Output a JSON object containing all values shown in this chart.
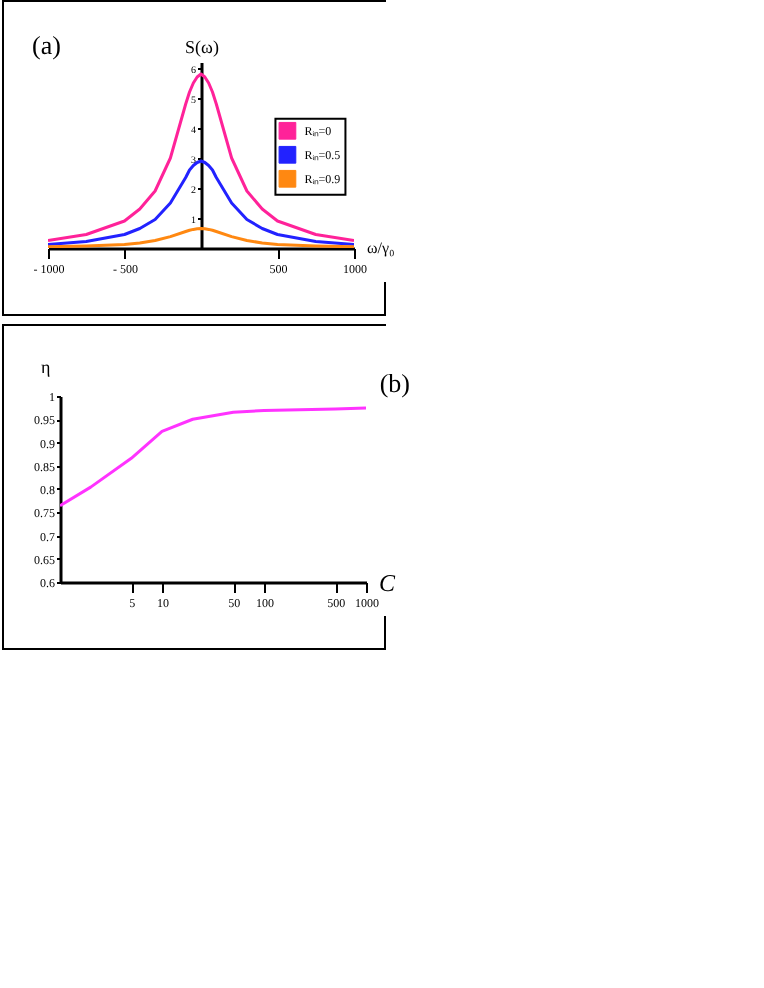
{
  "chart_data": [
    {
      "type": "line",
      "xlabel": "ω/γ₀",
      "ylabel": "S(ω)",
      "annotations": [
        "(a)"
      ],
      "legend": "right",
      "grid": false,
      "x": [
        -1000,
        -750,
        -500,
        -400,
        -300,
        -200,
        -100,
        -75,
        -50,
        -25,
        0,
        25,
        50,
        75,
        100,
        200,
        300,
        400,
        500,
        750,
        1000
      ],
      "xlim": [
        -1000,
        1000
      ],
      "xticks": [
        {
          "value": -1000,
          "label": "- 1000"
        },
        {
          "value": -500,
          "label": "- 500"
        },
        500,
        1000
      ],
      "ylim": [
        0,
        6.2
      ],
      "yticks": [
        1,
        2,
        3,
        4,
        5,
        6
      ],
      "series": [
        {
          "name": "Rᵢₙ=0",
          "color": "#ff2299",
          "values": [
            0.25,
            0.45,
            0.9,
            1.3,
            1.9,
            3.0,
            4.8,
            5.2,
            5.5,
            5.7,
            5.8,
            5.7,
            5.5,
            5.2,
            4.8,
            3.0,
            1.9,
            1.3,
            0.9,
            0.45,
            0.25
          ]
        },
        {
          "name": "Rᵢₙ=0.5",
          "color": "#2222ff",
          "values": [
            0.12,
            0.22,
            0.45,
            0.65,
            0.95,
            1.5,
            2.35,
            2.6,
            2.75,
            2.85,
            2.9,
            2.85,
            2.75,
            2.6,
            2.35,
            1.5,
            0.95,
            0.65,
            0.45,
            0.22,
            0.12
          ]
        },
        {
          "name": "Rᵢₙ=0.9",
          "color": "#ff8811",
          "values": [
            0.04,
            0.07,
            0.12,
            0.17,
            0.25,
            0.38,
            0.55,
            0.59,
            0.62,
            0.64,
            0.65,
            0.64,
            0.62,
            0.59,
            0.55,
            0.38,
            0.25,
            0.17,
            0.12,
            0.07,
            0.04
          ]
        }
      ]
    },
    {
      "type": "line",
      "xlabel": "C",
      "ylabel": "η",
      "annotations": [
        "(b)"
      ],
      "grid": false,
      "log": "x",
      "x": [
        1,
        2,
        5,
        10,
        20,
        50,
        100,
        500,
        1000
      ],
      "xlim": [
        1,
        1000
      ],
      "xticks": [
        5,
        10,
        50,
        100,
        500,
        1000
      ],
      "ylim": [
        0.6,
        1
      ],
      "yticks": [
        0.6,
        0.65,
        0.7,
        0.75,
        0.8,
        0.85,
        0.9,
        0.95,
        1
      ],
      "series": [
        {
          "color": "#ff33ff",
          "values": [
            0.764,
            0.804,
            0.866,
            0.924,
            0.95,
            0.965,
            0.969,
            0.972,
            0.974
          ]
        }
      ]
    }
  ]
}
